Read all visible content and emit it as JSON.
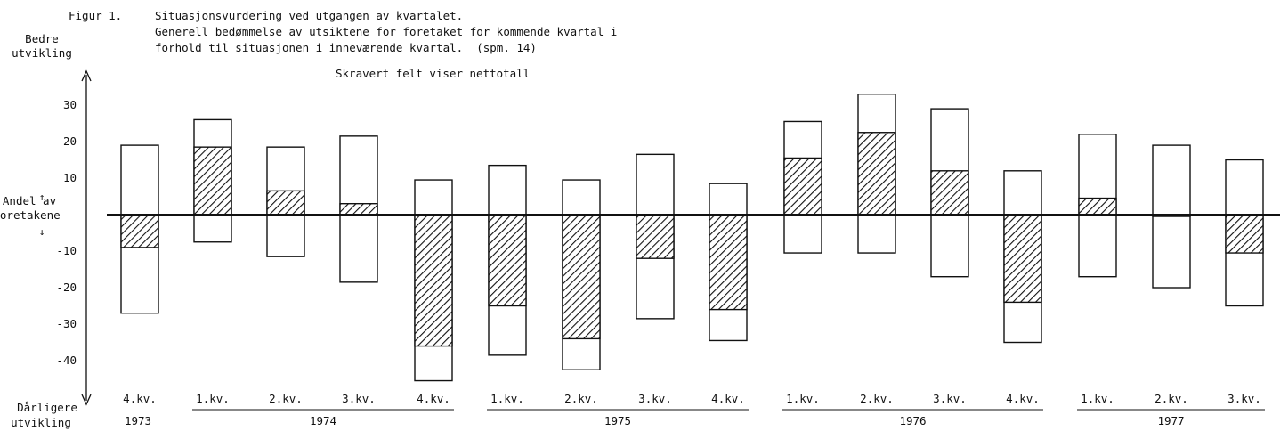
{
  "caption": {
    "figure_label": "Figur 1.",
    "line1": "Situasjonsvurdering ved utgangen av kvartalet.",
    "line2": "Generell bedømmelse av utsiktene for foretaket for kommende kvartal i",
    "line3": "forhold til situasjonen i inneværende kvartal.  (spm. 14)",
    "note": "Skravert felt viser nettotall"
  },
  "chart_data": {
    "type": "bar",
    "subtitle": "Skravert felt viser nettotall",
    "ylabel_top": "Bedre utvikling",
    "ylabel_middle": [
      "Andel av",
      "foretakene"
    ],
    "ylabel_bottom": "Dårligere utvikling",
    "ylim": [
      -45,
      35
    ],
    "yticks": [
      30,
      20,
      10,
      -10,
      -20,
      -30,
      -40
    ],
    "categories": [
      "4.kv. 1973",
      "1.kv. 1974",
      "2.kv. 1974",
      "3.kv. 1974",
      "4.kv. 1974",
      "1.kv. 1975",
      "2.kv. 1975",
      "3.kv. 1975",
      "4.kv. 1975",
      "1.kv. 1976",
      "2.kv. 1976",
      "3.kv. 1976",
      "4.kv. 1976",
      "1.kv. 1977",
      "2.kv. 1977",
      "3.kv. 1977"
    ],
    "quarter_labels": [
      "4.kv.",
      "1.kv.",
      "2.kv.",
      "3.kv.",
      "4.kv.",
      "1.kv.",
      "2.kv.",
      "3.kv.",
      "4.kv.",
      "1.kv.",
      "2.kv.",
      "3.kv.",
      "4.kv.",
      "1.kv.",
      "2.kv.",
      "3.kv."
    ],
    "year_labels": [
      {
        "label": "1973",
        "start": 0,
        "end": 0,
        "underline": false
      },
      {
        "label": "1974",
        "start": 1,
        "end": 4,
        "underline": true
      },
      {
        "label": "1975",
        "start": 5,
        "end": 8,
        "underline": true
      },
      {
        "label": "1976",
        "start": 9,
        "end": 12,
        "underline": true
      },
      {
        "label": "1977",
        "start": 13,
        "end": 15,
        "underline": true
      }
    ],
    "series": [
      {
        "name": "Bedre utvikling",
        "values": [
          19,
          26,
          18.5,
          21.5,
          9.5,
          13.5,
          9.5,
          16.5,
          8.5,
          25.5,
          33,
          29,
          12,
          22,
          19,
          15
        ]
      },
      {
        "name": "Dårligere utvikling",
        "values": [
          -27,
          -7.5,
          -11.5,
          -18.5,
          -45.5,
          -38.5,
          -42.5,
          -28.5,
          -34.5,
          -10.5,
          -10.5,
          -17,
          -35,
          -17,
          -20,
          -25
        ]
      },
      {
        "name": "Nettotall",
        "values": [
          -9,
          18.5,
          6.5,
          3,
          -36,
          -25,
          -34,
          -12,
          -26,
          15.5,
          22.5,
          12,
          -24,
          4.5,
          -0.5,
          -10.5
        ]
      }
    ],
    "grid": false
  }
}
